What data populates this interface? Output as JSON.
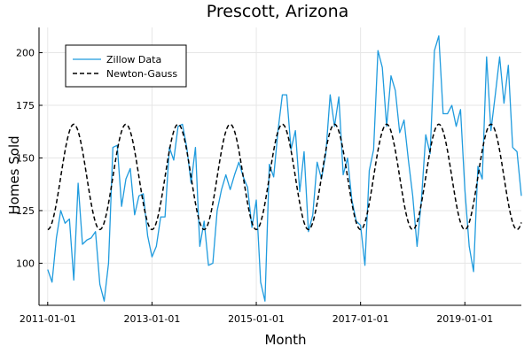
{
  "chart_data": {
    "type": "line",
    "title": "Prescott, Arizona",
    "xlabel": "Month",
    "ylabel": "Homes Sold",
    "grid": true,
    "legend_position": "top-left",
    "xlim": [
      "2010-11-01",
      "2020-02-01"
    ],
    "ylim": [
      80,
      212
    ],
    "x_ticks": [
      "2011-01-01",
      "2013-01-01",
      "2015-01-01",
      "2017-01-01",
      "2019-01-01"
    ],
    "y_ticks": [
      100,
      125,
      150,
      175,
      200
    ],
    "series": [
      {
        "name": "Zillow Data",
        "style": "solid",
        "color": "#1f9bde",
        "start_month": "2011-01",
        "values": [
          97,
          91,
          112,
          125,
          119,
          121,
          92,
          138,
          109,
          111,
          112,
          115,
          90,
          82,
          100,
          155,
          156,
          127,
          140,
          145,
          123,
          132,
          133,
          113,
          103,
          108,
          122,
          122,
          155,
          149,
          165,
          166,
          155,
          138,
          155,
          108,
          120,
          99,
          100,
          125,
          135,
          142,
          135,
          142,
          148,
          141,
          136,
          117,
          130,
          91,
          82,
          147,
          141,
          163,
          180,
          180,
          154,
          163,
          134,
          153,
          115,
          123,
          148,
          140,
          152,
          180,
          165,
          179,
          142,
          150,
          130,
          120,
          118,
          99,
          144,
          154,
          201,
          193,
          165,
          189,
          182,
          162,
          168,
          149,
          132,
          108,
          130,
          161,
          152,
          201,
          208,
          171,
          171,
          175,
          165,
          173,
          135,
          108,
          96,
          146,
          140,
          198,
          163,
          180,
          198,
          176,
          194,
          155,
          153,
          132
        ]
      },
      {
        "name": "Newton-Gauss",
        "style": "dashed",
        "color": "#000000",
        "start_month": "2011-01",
        "period_months": 12,
        "mean": 141,
        "amplitude": 25
      }
    ]
  }
}
